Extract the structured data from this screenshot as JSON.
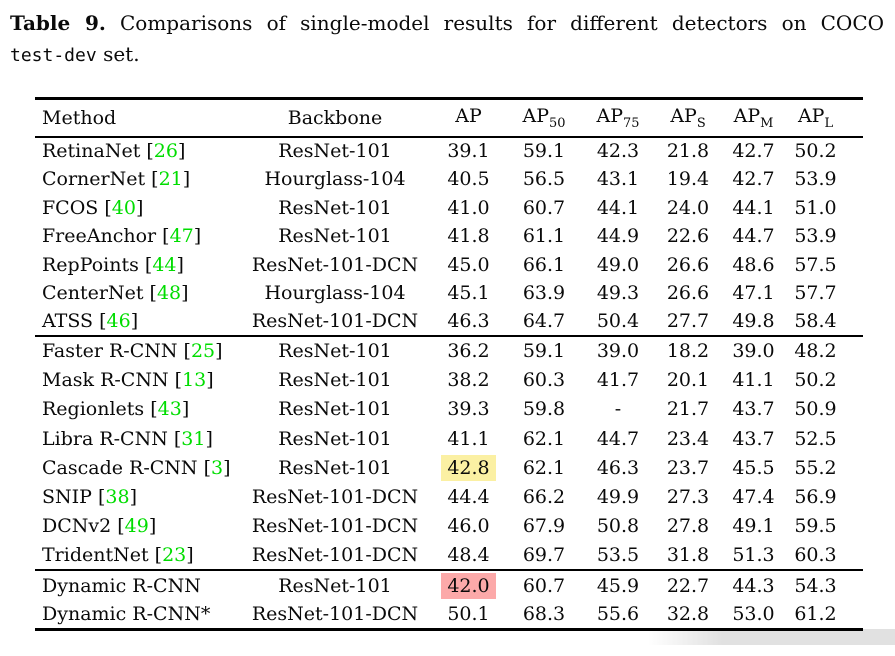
{
  "colors": {
    "citation_green": "#00dd00",
    "highlight_yellow": "#fbf0a3",
    "highlight_red": "#fca9a9",
    "artifact_gray": "#d7d7d7",
    "rule_black": "#000000"
  },
  "caption": {
    "label": "Table 9.",
    "body": "Comparisons of single-model results for different detectors on COCO",
    "code": "test-dev",
    "tail": "set."
  },
  "citation_brackets": {
    "open": "[",
    "close": "]"
  },
  "table": {
    "headers": [
      {
        "text": "Method",
        "sub": ""
      },
      {
        "text": "Backbone",
        "sub": ""
      },
      {
        "text": "AP",
        "sub": ""
      },
      {
        "text": "AP",
        "sub": "50"
      },
      {
        "text": "AP",
        "sub": "75"
      },
      {
        "text": "AP",
        "sub": "S"
      },
      {
        "text": "AP",
        "sub": "M"
      },
      {
        "text": "AP",
        "sub": "L"
      }
    ],
    "groups": [
      {
        "rows": [
          {
            "method": "RetinaNet",
            "cite": "26",
            "backbone": "ResNet-101",
            "values": [
              "39.1",
              "59.1",
              "42.3",
              "21.8",
              "42.7",
              "50.2"
            ]
          },
          {
            "method": "CornerNet",
            "cite": "21",
            "backbone": "Hourglass-104",
            "values": [
              "40.5",
              "56.5",
              "43.1",
              "19.4",
              "42.7",
              "53.9"
            ]
          },
          {
            "method": "FCOS",
            "cite": "40",
            "backbone": "ResNet-101",
            "values": [
              "41.0",
              "60.7",
              "44.1",
              "24.0",
              "44.1",
              "51.0"
            ]
          },
          {
            "method": "FreeAnchor",
            "cite": "47",
            "backbone": "ResNet-101",
            "values": [
              "41.8",
              "61.1",
              "44.9",
              "22.6",
              "44.7",
              "53.9"
            ]
          },
          {
            "method": "RepPoints",
            "cite": "44",
            "backbone": "ResNet-101-DCN",
            "values": [
              "45.0",
              "66.1",
              "49.0",
              "26.6",
              "48.6",
              "57.5"
            ]
          },
          {
            "method": "CenterNet",
            "cite": "48",
            "backbone": "Hourglass-104",
            "values": [
              "45.1",
              "63.9",
              "49.3",
              "26.6",
              "47.1",
              "57.7"
            ]
          },
          {
            "method": "ATSS",
            "cite": "46",
            "backbone": "ResNet-101-DCN",
            "values": [
              "46.3",
              "64.7",
              "50.4",
              "27.7",
              "49.8",
              "58.4"
            ]
          }
        ]
      },
      {
        "rows": [
          {
            "method": "Faster R-CNN",
            "cite": "25",
            "backbone": "ResNet-101",
            "values": [
              "36.2",
              "59.1",
              "39.0",
              "18.2",
              "39.0",
              "48.2"
            ]
          },
          {
            "method": "Mask R-CNN",
            "cite": "13",
            "backbone": "ResNet-101",
            "values": [
              "38.2",
              "60.3",
              "41.7",
              "20.1",
              "41.1",
              "50.2"
            ]
          },
          {
            "method": "Regionlets",
            "cite": "43",
            "backbone": "ResNet-101",
            "values": [
              "39.3",
              "59.8",
              "-",
              "21.7",
              "43.7",
              "50.9"
            ]
          },
          {
            "method": "Libra R-CNN",
            "cite": "31",
            "backbone": "ResNet-101",
            "values": [
              "41.1",
              "62.1",
              "44.7",
              "23.4",
              "43.7",
              "52.5"
            ]
          },
          {
            "method": "Cascade R-CNN",
            "cite": "3",
            "backbone": "ResNet-101",
            "values": [
              "42.8",
              "62.1",
              "46.3",
              "23.7",
              "45.5",
              "55.2"
            ],
            "highlight": {
              "index": 0,
              "style": "yellow"
            }
          },
          {
            "method": "SNIP",
            "cite": "38",
            "backbone": "ResNet-101-DCN",
            "values": [
              "44.4",
              "66.2",
              "49.9",
              "27.3",
              "47.4",
              "56.9"
            ]
          },
          {
            "method": "DCNv2",
            "cite": "49",
            "backbone": "ResNet-101-DCN",
            "values": [
              "46.0",
              "67.9",
              "50.8",
              "27.8",
              "49.1",
              "59.5"
            ]
          },
          {
            "method": "TridentNet",
            "cite": "23",
            "backbone": "ResNet-101-DCN",
            "values": [
              "48.4",
              "69.7",
              "53.5",
              "31.8",
              "51.3",
              "60.3"
            ]
          }
        ]
      },
      {
        "rows": [
          {
            "method": "Dynamic R-CNN",
            "backbone": "ResNet-101",
            "values": [
              "42.0",
              "60.7",
              "45.9",
              "22.7",
              "44.3",
              "54.3"
            ],
            "highlight": {
              "index": 0,
              "style": "red"
            }
          },
          {
            "method": "Dynamic R-CNN*",
            "backbone": "ResNet-101-DCN",
            "values": [
              "50.1",
              "68.3",
              "55.6",
              "32.8",
              "53.0",
              "61.2"
            ]
          }
        ]
      }
    ]
  }
}
